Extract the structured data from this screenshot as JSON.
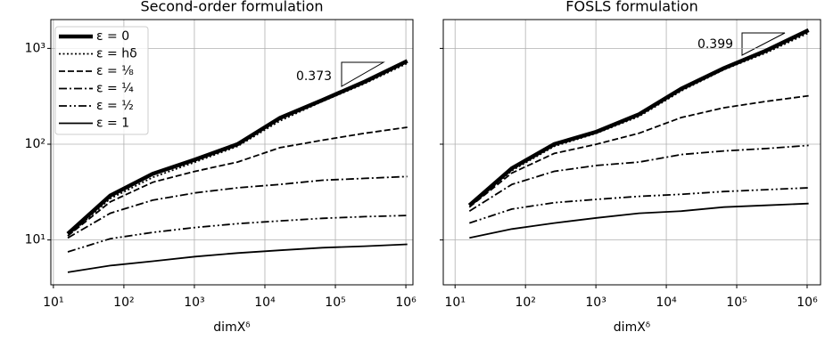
{
  "chart_data": [
    {
      "type": "line",
      "title": "Second-order formulation",
      "xlabel": "dimXᵟ",
      "xscale": "log",
      "yscale": "log",
      "grid": true,
      "legend": "upper left",
      "x": [
        16,
        64,
        256,
        1024,
        4096,
        16384,
        65536,
        262144,
        1048576
      ],
      "xlim": [
        9.2,
        1260000
      ],
      "ylim": [
        3.4,
        2000
      ],
      "xticks": [
        {
          "value": 10,
          "label": "10¹"
        },
        {
          "value": 100,
          "label": "10²"
        },
        {
          "value": 1000,
          "label": "10³"
        },
        {
          "value": 10000,
          "label": "10⁴"
        },
        {
          "value": 100000,
          "label": "10⁵"
        },
        {
          "value": 1000000,
          "label": "10⁶"
        }
      ],
      "yticks": [
        {
          "value": 10,
          "label": "10¹"
        },
        {
          "value": 100,
          "label": "10²"
        },
        {
          "value": 1000,
          "label": "10³"
        }
      ],
      "annotations": [
        {
          "text": "0.373"
        }
      ],
      "series": [
        {
          "name": "ε = 0",
          "color": "#000000",
          "linestyle": "solid-thick",
          "values": [
            11.6,
            29,
            49,
            69,
            100,
            188,
            289,
            450,
            740
          ]
        },
        {
          "name": "ε = hδ",
          "color": "#000000",
          "linestyle": "dotted",
          "values": [
            11,
            27,
            45,
            65,
            95,
            175,
            280,
            430,
            700
          ]
        },
        {
          "name": "ε = ⅛",
          "color": "#000000",
          "linestyle": "dashed",
          "values": [
            11,
            25,
            40,
            52,
            65,
            92,
            110,
            130,
            150
          ]
        },
        {
          "name": "ε = ¼",
          "color": "#000000",
          "linestyle": "dashdot",
          "values": [
            10.5,
            19,
            26,
            31,
            35,
            38,
            42,
            44,
            46
          ]
        },
        {
          "name": "ε = ½",
          "color": "#000000",
          "linestyle": "dashdotdot",
          "values": [
            7.5,
            10.3,
            12,
            13.5,
            14.8,
            15.8,
            16.8,
            17.5,
            18
          ]
        },
        {
          "name": "ε = 1",
          "color": "#000000",
          "linestyle": "solid",
          "values": [
            4.6,
            5.4,
            6,
            6.7,
            7.3,
            7.8,
            8.3,
            8.6,
            9
          ]
        }
      ]
    },
    {
      "type": "line",
      "title": "FOSLS formulation",
      "xlabel": "dimXᵟ",
      "xscale": "log",
      "yscale": "log",
      "grid": true,
      "x": [
        16,
        64,
        256,
        1024,
        4096,
        16384,
        65536,
        262144,
        1048576
      ],
      "xlim": [
        6.8,
        1550000
      ],
      "ylim": [
        3.4,
        2000
      ],
      "xticks": [
        {
          "value": 10,
          "label": "10¹"
        },
        {
          "value": 100,
          "label": "10²"
        },
        {
          "value": 1000,
          "label": "10³"
        },
        {
          "value": 10000,
          "label": "10⁴"
        },
        {
          "value": 100000,
          "label": "10⁵"
        },
        {
          "value": 1000000,
          "label": "10⁶"
        }
      ],
      "yticks": [
        10,
        100,
        1000
      ],
      "annotations": [
        {
          "text": "0.399"
        }
      ],
      "series": [
        {
          "color": "#000000",
          "linestyle": "solid-thick",
          "values": [
            23,
            56,
            100,
            135,
            205,
            380,
            620,
            950,
            1550
          ]
        },
        {
          "color": "#000000",
          "linestyle": "dotted",
          "values": [
            22,
            53,
            95,
            130,
            195,
            360,
            600,
            900,
            1450
          ]
        },
        {
          "color": "#000000",
          "linestyle": "dashed",
          "values": [
            22,
            50,
            80,
            100,
            130,
            190,
            240,
            280,
            320
          ]
        },
        {
          "color": "#000000",
          "linestyle": "dashdot",
          "values": [
            20,
            38,
            52,
            60,
            65,
            78,
            85,
            90,
            97
          ]
        },
        {
          "color": "#000000",
          "linestyle": "dashdotdot",
          "values": [
            15,
            21,
            24.5,
            26.5,
            28.5,
            30,
            32,
            33.5,
            35
          ]
        },
        {
          "color": "#000000",
          "linestyle": "solid",
          "values": [
            10.5,
            13,
            15,
            17,
            19,
            20,
            22,
            23,
            24
          ]
        }
      ]
    }
  ]
}
